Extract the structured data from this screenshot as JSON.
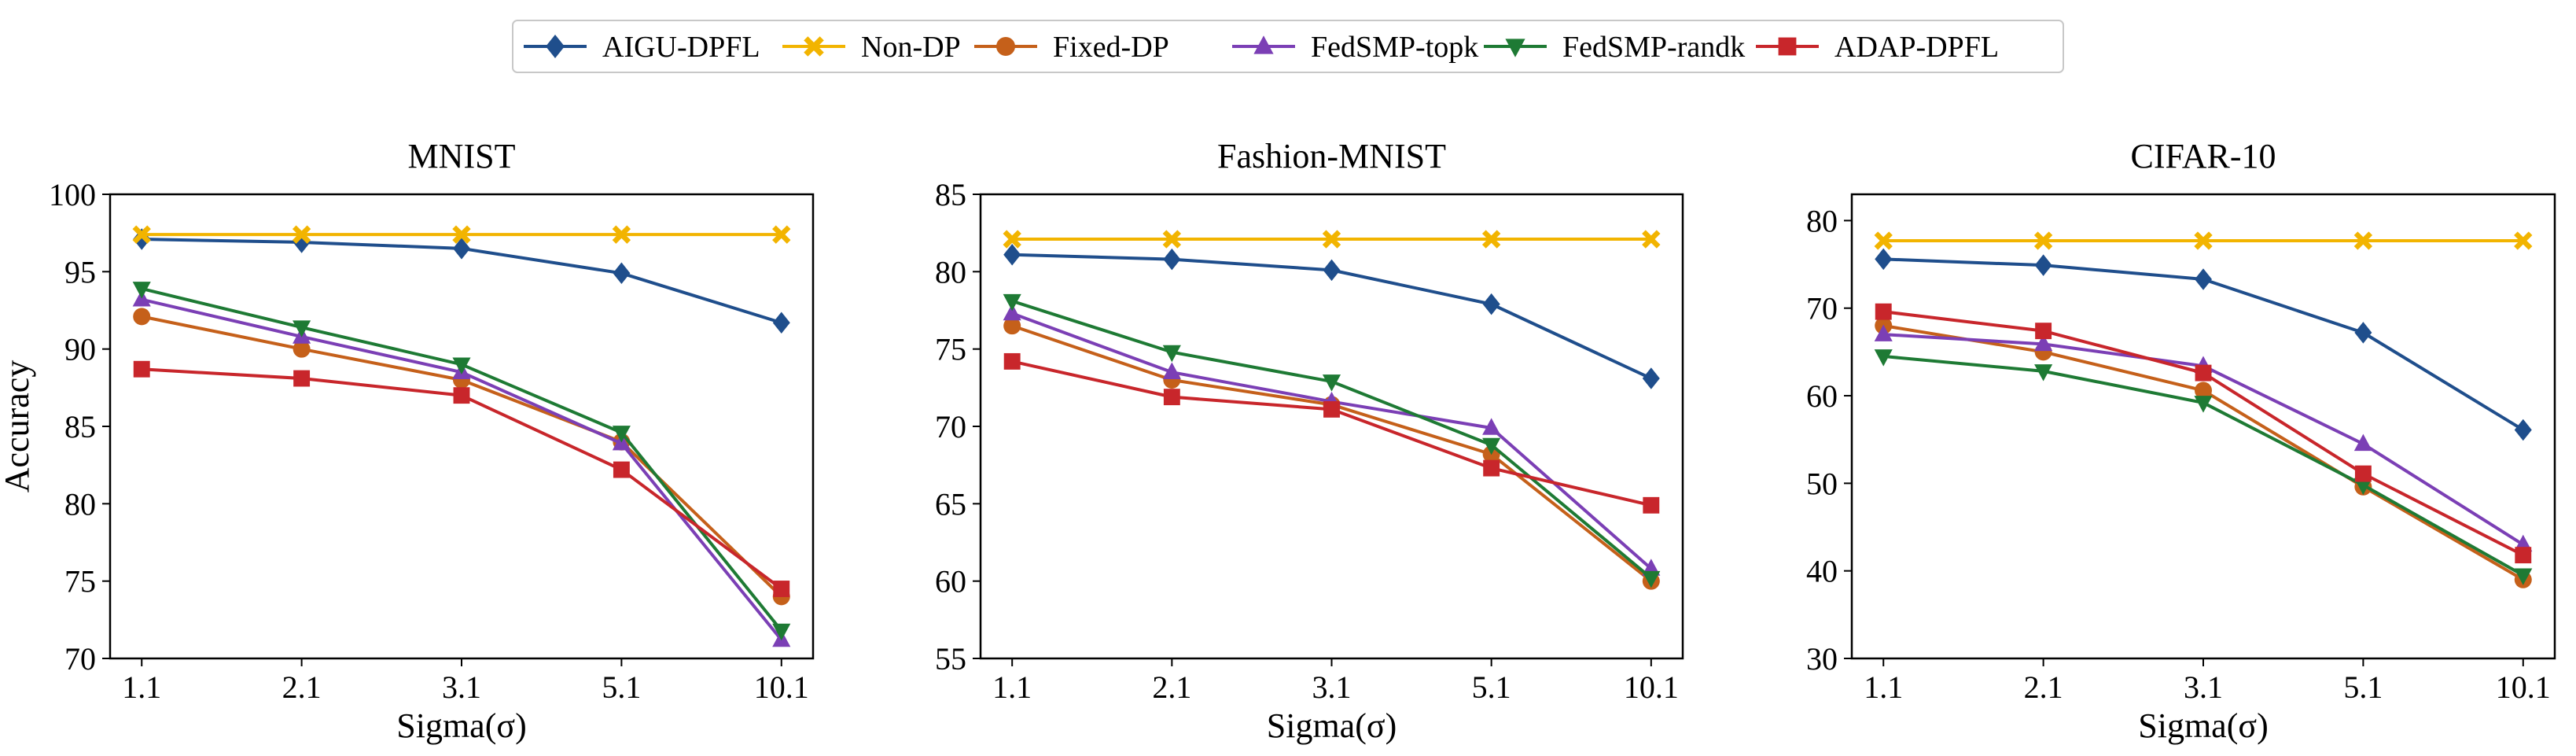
{
  "legend": [
    {
      "name": "AIGU-DPFL",
      "color": "#1f4e8c",
      "marker": "diamond"
    },
    {
      "name": "Non-DP",
      "color": "#f2b400",
      "marker": "x"
    },
    {
      "name": "Fixed-DP",
      "color": "#c5601a",
      "marker": "circle"
    },
    {
      "name": "FedSMP-topk",
      "color": "#7b3fb5",
      "marker": "triangle-up"
    },
    {
      "name": "FedSMP-randk",
      "color": "#1e7a34",
      "marker": "triangle-down"
    },
    {
      "name": "ADAP-DPFL",
      "color": "#c8262b",
      "marker": "square"
    }
  ],
  "chart_data": [
    {
      "type": "line",
      "title": "MNIST",
      "xlabel": "Sigma(σ)",
      "ylabel": "Accuracy",
      "categories": [
        "1.1",
        "2.1",
        "3.1",
        "5.1",
        "10.1"
      ],
      "ylim": [
        70,
        100
      ],
      "yticks": [
        70,
        75,
        80,
        85,
        90,
        95,
        100
      ],
      "series": [
        {
          "name": "AIGU-DPFL",
          "values": [
            97.1,
            96.9,
            96.5,
            94.9,
            91.7
          ]
        },
        {
          "name": "Non-DP",
          "values": [
            97.4,
            97.4,
            97.4,
            97.4,
            97.4
          ]
        },
        {
          "name": "Fixed-DP",
          "values": [
            92.1,
            90.0,
            88.0,
            84.0,
            74.0
          ]
        },
        {
          "name": "FedSMP-topk",
          "values": [
            93.2,
            90.8,
            88.5,
            83.9,
            71.2
          ]
        },
        {
          "name": "FedSMP-randk",
          "values": [
            93.9,
            91.4,
            89.0,
            84.6,
            71.8
          ]
        },
        {
          "name": "ADAP-DPFL",
          "values": [
            88.7,
            88.1,
            87.0,
            82.2,
            74.5
          ]
        }
      ]
    },
    {
      "type": "line",
      "title": "Fashion-MNIST",
      "xlabel": "Sigma(σ)",
      "ylabel": "",
      "categories": [
        "1.1",
        "2.1",
        "3.1",
        "5.1",
        "10.1"
      ],
      "ylim": [
        55,
        85
      ],
      "yticks": [
        55,
        60,
        65,
        70,
        75,
        80,
        85
      ],
      "series": [
        {
          "name": "AIGU-DPFL",
          "values": [
            81.1,
            80.8,
            80.1,
            77.9,
            73.1
          ]
        },
        {
          "name": "Non-DP",
          "values": [
            82.1,
            82.1,
            82.1,
            82.1,
            82.1
          ]
        },
        {
          "name": "Fixed-DP",
          "values": [
            76.5,
            73.0,
            71.4,
            68.2,
            60.0
          ]
        },
        {
          "name": "FedSMP-topk",
          "values": [
            77.3,
            73.5,
            71.6,
            69.9,
            60.8
          ]
        },
        {
          "name": "FedSMP-randk",
          "values": [
            78.1,
            74.8,
            72.9,
            68.8,
            60.2
          ]
        },
        {
          "name": "ADAP-DPFL",
          "values": [
            74.2,
            71.9,
            71.1,
            67.3,
            64.9
          ]
        }
      ]
    },
    {
      "type": "line",
      "title": "CIFAR-10",
      "xlabel": "Sigma(σ)",
      "ylabel": "",
      "categories": [
        "1.1",
        "2.1",
        "3.1",
        "5.1",
        "10.1"
      ],
      "ylim": [
        30,
        83
      ],
      "yticks": [
        30,
        40,
        50,
        60,
        70,
        80
      ],
      "series": [
        {
          "name": "AIGU-DPFL",
          "values": [
            75.6,
            74.9,
            73.3,
            67.2,
            56.1
          ]
        },
        {
          "name": "Non-DP",
          "values": [
            77.7,
            77.7,
            77.7,
            77.7,
            77.7
          ]
        },
        {
          "name": "Fixed-DP",
          "values": [
            68.0,
            65.0,
            60.6,
            49.6,
            39.0
          ]
        },
        {
          "name": "FedSMP-topk",
          "values": [
            67.0,
            65.9,
            63.4,
            54.5,
            43.0
          ]
        },
        {
          "name": "FedSMP-randk",
          "values": [
            64.5,
            62.8,
            59.2,
            49.8,
            39.5
          ]
        },
        {
          "name": "ADAP-DPFL",
          "values": [
            69.6,
            67.4,
            62.6,
            51.1,
            41.8
          ]
        }
      ]
    }
  ]
}
